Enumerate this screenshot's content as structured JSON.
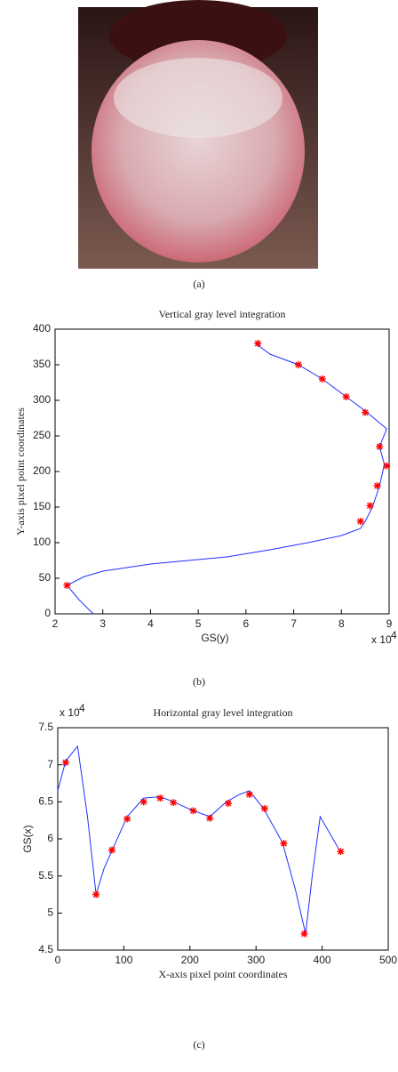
{
  "captions": [
    "(a)",
    "(b)",
    "(c)"
  ],
  "chart_data": [
    {
      "type": "line",
      "title": "Vertical gray level integration",
      "x_label": "GS(y)",
      "y_label": "Y-axis pixel point coordinates",
      "x_multiplier": {
        "base": "x 10",
        "exponent": "4"
      },
      "xlim": [
        2,
        9
      ],
      "xticks": [
        2,
        3,
        4,
        5,
        6,
        7,
        8,
        9
      ],
      "ylim": [
        0,
        400
      ],
      "yticks": [
        0,
        50,
        100,
        150,
        200,
        250,
        300,
        350,
        400
      ],
      "series": [
        {
          "color": "#2030ff",
          "marker": "none",
          "x": [
            2.8,
            2.5,
            2.25,
            2.6,
            3.0,
            4.0,
            5.6,
            6.5,
            7.3,
            8.0,
            8.4,
            8.5,
            8.65,
            8.8,
            8.9,
            8.8,
            8.95,
            8.5,
            8.1,
            7.6,
            7.1,
            6.5,
            6.2
          ],
          "values": [
            0,
            20,
            40,
            52,
            60,
            70,
            80,
            90,
            100,
            110,
            120,
            130,
            150,
            180,
            210,
            235,
            260,
            285,
            305,
            330,
            350,
            365,
            380
          ]
        },
        {
          "color": "#ff0000",
          "marker": "star",
          "x": [
            2.25,
            8.4,
            8.6,
            8.75,
            8.95,
            8.8,
            8.5,
            8.1,
            7.6,
            7.1,
            6.25
          ],
          "values": [
            40,
            130,
            152,
            180,
            208,
            235,
            283,
            305,
            330,
            350,
            380
          ]
        }
      ]
    },
    {
      "type": "line",
      "title": "Horizontal gray level integration",
      "x_label": "X-axis pixel point coordinates",
      "y_label": "GS(x)",
      "y_multiplier": {
        "base": "x 10",
        "exponent": "4"
      },
      "xlim": [
        0,
        500
      ],
      "xticks": [
        0,
        100,
        200,
        300,
        400,
        500
      ],
      "ylim": [
        4.5,
        7.5
      ],
      "yticks": [
        4.5,
        5,
        5.5,
        6,
        6.5,
        7,
        7.5
      ],
      "series": [
        {
          "color": "#2030ff",
          "marker": "none",
          "x": [
            0,
            12,
            30,
            45,
            58,
            70,
            85,
            105,
            130,
            155,
            175,
            200,
            230,
            255,
            275,
            290,
            312,
            340,
            360,
            375,
            385,
            397,
            410,
            428
          ],
          "values": [
            6.65,
            7.05,
            7.25,
            6.3,
            5.25,
            5.6,
            5.9,
            6.3,
            6.55,
            6.57,
            6.5,
            6.4,
            6.3,
            6.5,
            6.6,
            6.65,
            6.4,
            5.95,
            5.3,
            4.72,
            5.5,
            6.3,
            6.1,
            5.82
          ]
        },
        {
          "color": "#ff0000",
          "marker": "star",
          "x": [
            12,
            58,
            82,
            105,
            130,
            155,
            175,
            205,
            230,
            258,
            290,
            313,
            342,
            373,
            428
          ],
          "values": [
            7.03,
            5.25,
            5.85,
            6.27,
            6.5,
            6.55,
            6.49,
            6.38,
            6.28,
            6.48,
            6.6,
            6.41,
            5.94,
            4.72,
            5.83
          ]
        }
      ]
    }
  ]
}
